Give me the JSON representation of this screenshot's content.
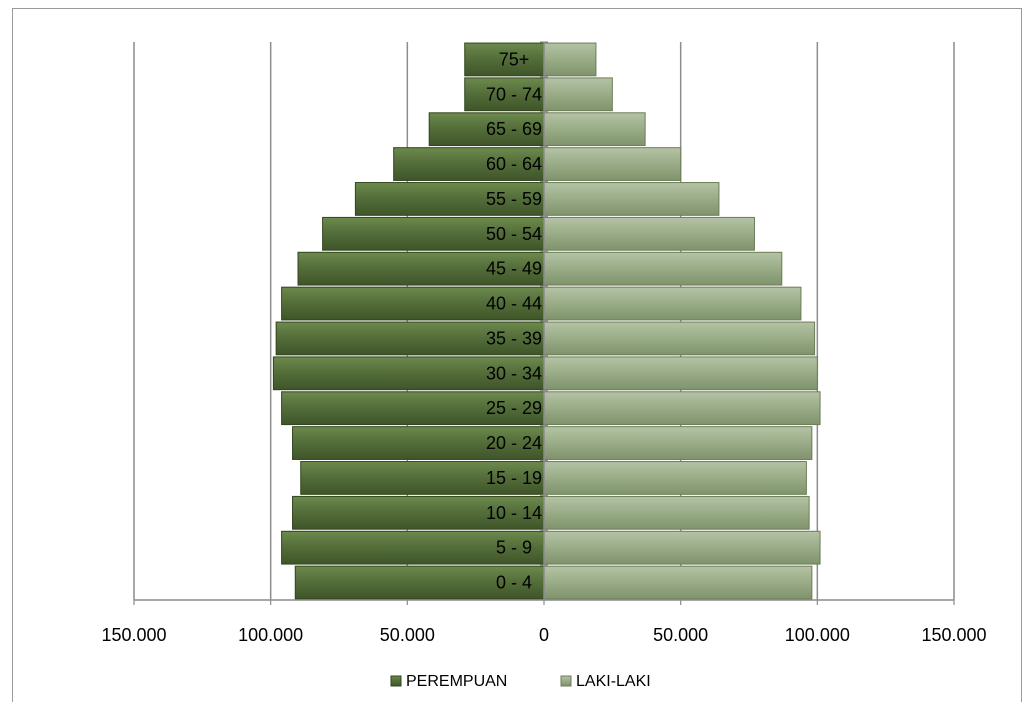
{
  "chart_data": {
    "type": "bar",
    "orientation": "horizontal",
    "layout": "population-pyramid",
    "categories": [
      "0 - 4",
      "5 - 9",
      "10 - 14",
      "15 - 19",
      "20 - 24",
      "25 - 29",
      "30 - 34",
      "35 - 39",
      "40 - 44",
      "45 - 49",
      "50 - 54",
      "55 - 59",
      "60 - 64",
      "65 - 69",
      "70 - 74",
      "75+"
    ],
    "series": [
      {
        "name": "PEREMPUAN",
        "side": "left",
        "color": "#556f3b",
        "values": [
          91000,
          96000,
          92000,
          89000,
          92000,
          96000,
          99000,
          98000,
          96000,
          90000,
          81000,
          69000,
          55000,
          42000,
          29000,
          29000
        ]
      },
      {
        "name": "LAKI-LAKI",
        "side": "right",
        "color": "#9cae8a",
        "values": [
          98000,
          101000,
          97000,
          96000,
          98000,
          101000,
          100000,
          99000,
          94000,
          87000,
          77000,
          64000,
          50000,
          37000,
          25000,
          19000
        ]
      }
    ],
    "xlim": [
      -150000,
      150000
    ],
    "xticks": [
      -150000,
      -100000,
      -50000,
      0,
      50000,
      100000,
      150000
    ],
    "xtick_labels": [
      "150.000",
      "100.000",
      "50.000",
      "0",
      "50.000",
      "100.000",
      "150.000"
    ],
    "grid": "vertical",
    "legend_position": "bottom",
    "title": "",
    "xlabel": "",
    "ylabel": ""
  }
}
